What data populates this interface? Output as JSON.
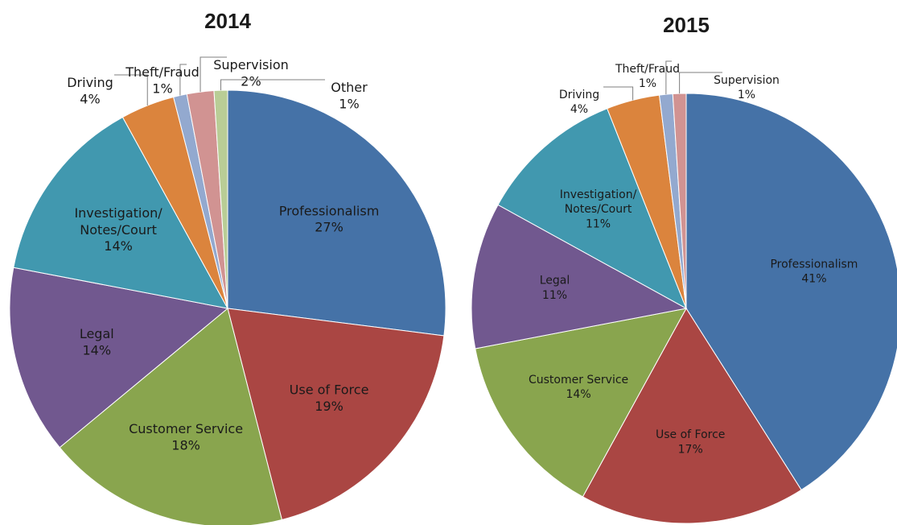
{
  "chart_data": [
    {
      "type": "pie",
      "title": "2014",
      "categories": [
        "Professionalism",
        "Use of Force",
        "Customer Service",
        "Legal",
        "Investigation/Notes/Court",
        "Driving",
        "Theft/Fraud",
        "Supervision",
        "Other"
      ],
      "values": [
        27,
        19,
        18,
        14,
        14,
        4,
        1,
        2,
        1
      ],
      "value_labels": [
        "27%",
        "19%",
        "18%",
        "14%",
        "14%",
        "4%",
        "1%",
        "2%",
        "1%"
      ],
      "colors": [
        "#4572a7",
        "#aa4643",
        "#89a54e",
        "#71588f",
        "#4198af",
        "#db843d",
        "#93a9cf",
        "#d19392",
        "#b9cd96"
      ]
    },
    {
      "type": "pie",
      "title": "2015",
      "categories": [
        "Professionalism",
        "Use of Force",
        "Customer Service",
        "Legal",
        "Investigation/Notes/Court",
        "Driving",
        "Theft/Fraud",
        "Supervision"
      ],
      "values": [
        41,
        17,
        14,
        11,
        11,
        4,
        1,
        1
      ],
      "value_labels": [
        "41%",
        "17%",
        "14%",
        "11%",
        "11%",
        "4%",
        "1%",
        "1%"
      ],
      "colors": [
        "#4572a7",
        "#aa4643",
        "#89a54e",
        "#71588f",
        "#4198af",
        "#db843d",
        "#93a9cf",
        "#d19392"
      ]
    }
  ]
}
